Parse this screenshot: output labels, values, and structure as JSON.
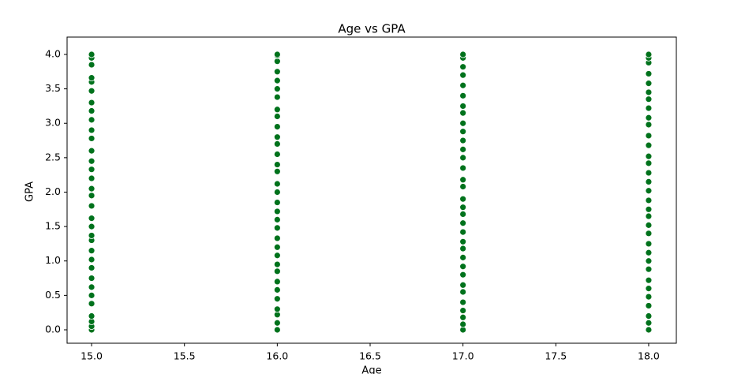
{
  "chart_data": {
    "type": "scatter",
    "title": "Age vs GPA",
    "x_label": "Age",
    "y_label": "GPA",
    "color": "#00721c",
    "x": [
      15,
      15,
      15,
      15,
      15,
      15,
      15,
      15,
      15,
      15,
      15,
      15,
      15,
      15,
      15,
      15,
      15,
      15,
      15,
      15,
      15,
      15,
      15,
      15,
      15,
      15,
      15,
      15,
      15,
      15,
      15,
      15,
      15,
      16,
      16,
      16,
      16,
      16,
      16,
      16,
      16,
      16,
      16,
      16,
      16,
      16,
      16,
      16,
      16,
      16,
      16,
      16,
      16,
      16,
      16,
      16,
      16,
      16,
      16,
      16,
      16,
      16,
      16,
      16,
      16,
      16,
      17,
      17,
      17,
      17,
      17,
      17,
      17,
      17,
      17,
      17,
      17,
      17,
      17,
      17,
      17,
      17,
      17,
      17,
      17,
      17,
      17,
      17,
      17,
      17,
      17,
      17,
      17,
      17,
      17,
      17,
      17,
      17,
      17,
      18,
      18,
      18,
      18,
      18,
      18,
      18,
      18,
      18,
      18,
      18,
      18,
      18,
      18,
      18,
      18,
      18,
      18,
      18,
      18,
      18,
      18,
      18,
      18,
      18,
      18,
      18,
      18,
      18,
      18,
      18,
      18,
      18
    ],
    "values": [
      0,
      0.05,
      0.12,
      0.2,
      0.38,
      0.5,
      0.62,
      0.75,
      0.9,
      1.02,
      1.15,
      1.3,
      1.37,
      1.5,
      1.62,
      1.8,
      1.95,
      2.05,
      2.2,
      2.33,
      2.45,
      2.6,
      2.78,
      2.9,
      3.05,
      3.18,
      3.3,
      3.47,
      3.6,
      3.66,
      3.85,
      3.95,
      4.0,
      0,
      0.1,
      0.22,
      0.3,
      0.45,
      0.58,
      0.7,
      0.85,
      0.95,
      1.08,
      1.2,
      1.33,
      1.48,
      1.6,
      1.72,
      1.85,
      2.0,
      2.12,
      2.3,
      2.4,
      2.55,
      2.7,
      2.8,
      2.95,
      3.1,
      3.2,
      3.38,
      3.5,
      3.62,
      3.75,
      3.9,
      3.98,
      4.0,
      0,
      0.08,
      0.18,
      0.28,
      0.4,
      0.55,
      0.65,
      0.8,
      0.92,
      1.05,
      1.18,
      1.28,
      1.42,
      1.55,
      1.68,
      1.78,
      1.9,
      2.08,
      2.18,
      2.35,
      2.5,
      2.62,
      2.75,
      2.88,
      3.0,
      3.15,
      3.25,
      3.4,
      3.55,
      3.7,
      3.82,
      3.95,
      4.0,
      0,
      0.1,
      0.2,
      0.35,
      0.48,
      0.6,
      0.72,
      0.88,
      1.0,
      1.12,
      1.25,
      1.4,
      1.52,
      1.65,
      1.75,
      1.88,
      2.02,
      2.15,
      2.28,
      2.42,
      2.52,
      2.68,
      2.82,
      2.98,
      3.08,
      3.22,
      3.35,
      3.45,
      3.58,
      3.72,
      3.88,
      3.95,
      4.0
    ],
    "xlim": [
      14.868,
      18.149
    ],
    "xticks": [
      {
        "value": 15,
        "label": "15.0"
      },
      15.5,
      {
        "value": 16,
        "label": "16.0"
      },
      16.5,
      {
        "value": 17,
        "label": "17.0"
      },
      17.5,
      {
        "value": 18,
        "label": "18.0"
      }
    ],
    "ylim": [
      -0.195,
      4.252
    ],
    "yticks": [
      {
        "value": 0,
        "label": "0.0"
      },
      0.5,
      {
        "value": 1,
        "label": "1.0"
      },
      1.5,
      {
        "value": 2,
        "label": "2.0"
      },
      2.5,
      {
        "value": 3,
        "label": "3.0"
      },
      3.5,
      {
        "value": 4,
        "label": "4.0"
      }
    ],
    "grid": false
  }
}
